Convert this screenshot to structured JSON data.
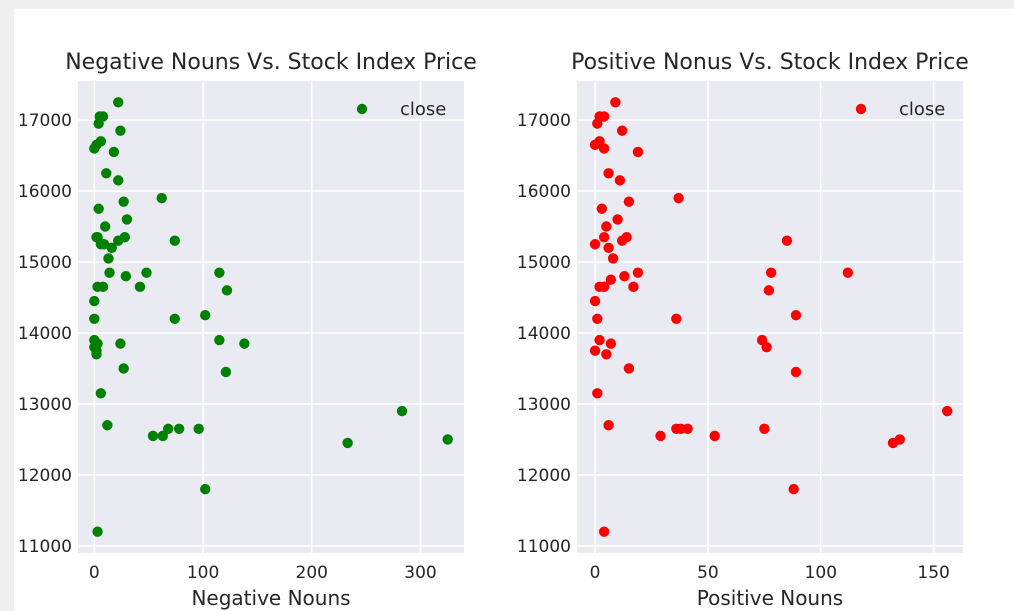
{
  "chart_data": [
    {
      "type": "scatter",
      "title": "Negative Nouns Vs. Stock Index Price",
      "xlabel": "Negative Nouns",
      "ylabel": "",
      "xlim": [
        -15,
        340
      ],
      "ylim": [
        10900,
        17550
      ],
      "xticks": [
        0,
        100,
        200,
        300
      ],
      "yticks": [
        11000,
        12000,
        13000,
        14000,
        15000,
        16000,
        17000
      ],
      "ytick_labels": [
        "11000",
        "12000",
        "13000",
        "14000",
        "15000",
        "16000",
        "17000"
      ],
      "grid": true,
      "legend": "top-right",
      "series": [
        {
          "name": "close",
          "color": "#008000",
          "x": [
            22,
            8,
            5,
            4,
            6,
            2,
            0,
            24,
            18,
            62,
            11,
            22,
            27,
            4,
            3,
            30,
            10,
            2,
            22,
            9,
            28,
            6,
            16,
            74,
            13,
            14,
            29,
            48,
            115,
            3,
            8,
            122,
            42,
            0,
            102,
            74,
            0,
            115,
            3,
            24,
            138,
            0,
            2,
            0,
            2,
            27,
            121,
            6,
            283,
            12,
            96,
            78,
            68,
            63,
            54,
            233,
            325,
            102,
            3
          ],
          "y": [
            17250,
            17050,
            17050,
            16950,
            16700,
            16650,
            16600,
            16850,
            16550,
            15900,
            16250,
            16150,
            15850,
            15750,
            15350,
            15600,
            15500,
            15350,
            15300,
            15250,
            15350,
            15250,
            15200,
            15300,
            15050,
            14850,
            14800,
            14850,
            14850,
            14650,
            14650,
            14600,
            14650,
            14450,
            14250,
            14200,
            14200,
            13900,
            13850,
            13850,
            13850,
            13900,
            13750,
            13800,
            13700,
            13500,
            13450,
            13150,
            12900,
            12700,
            12650,
            12650,
            12650,
            12550,
            12550,
            12450,
            12500,
            11800,
            11200
          ]
        }
      ]
    },
    {
      "type": "scatter",
      "title": "Positive Nonus Vs. Stock Index Price",
      "xlabel": "Positive Nouns",
      "ylabel": "",
      "xlim": [
        -8,
        163
      ],
      "ylim": [
        10900,
        17550
      ],
      "xticks": [
        0,
        50,
        100,
        150
      ],
      "yticks": [
        11000,
        12000,
        13000,
        14000,
        15000,
        16000,
        17000
      ],
      "ytick_labels": [
        "11000",
        "12000",
        "13000",
        "14000",
        "15000",
        "16000",
        "17000"
      ],
      "grid": true,
      "legend": "top-right",
      "series": [
        {
          "name": "close",
          "color": "#ff0000",
          "x": [
            9,
            4,
            2,
            1,
            0,
            12,
            2,
            4,
            19,
            37,
            6,
            11,
            15,
            3,
            10,
            0,
            14,
            12,
            5,
            4,
            6,
            8,
            13,
            7,
            19,
            17,
            2,
            4,
            0,
            1,
            36,
            78,
            112,
            85,
            77,
            89,
            2,
            7,
            74,
            76,
            5,
            0,
            15,
            89,
            1,
            6,
            38,
            36,
            41,
            75,
            135,
            132,
            156,
            29,
            53,
            4,
            88
          ],
          "y": [
            17250,
            17050,
            17050,
            16950,
            16650,
            16850,
            16700,
            16600,
            16550,
            15900,
            16250,
            16150,
            15850,
            15750,
            15600,
            15250,
            15350,
            15300,
            15500,
            15350,
            15200,
            15050,
            14800,
            14750,
            14850,
            14650,
            14650,
            14650,
            14450,
            14200,
            14200,
            14850,
            14850,
            15300,
            14600,
            14250,
            13900,
            13850,
            13900,
            13800,
            13700,
            13750,
            13500,
            13450,
            13150,
            12700,
            12650,
            12650,
            12650,
            12650,
            12500,
            12450,
            12900,
            12550,
            12550,
            11200,
            11800
          ]
        }
      ]
    }
  ]
}
